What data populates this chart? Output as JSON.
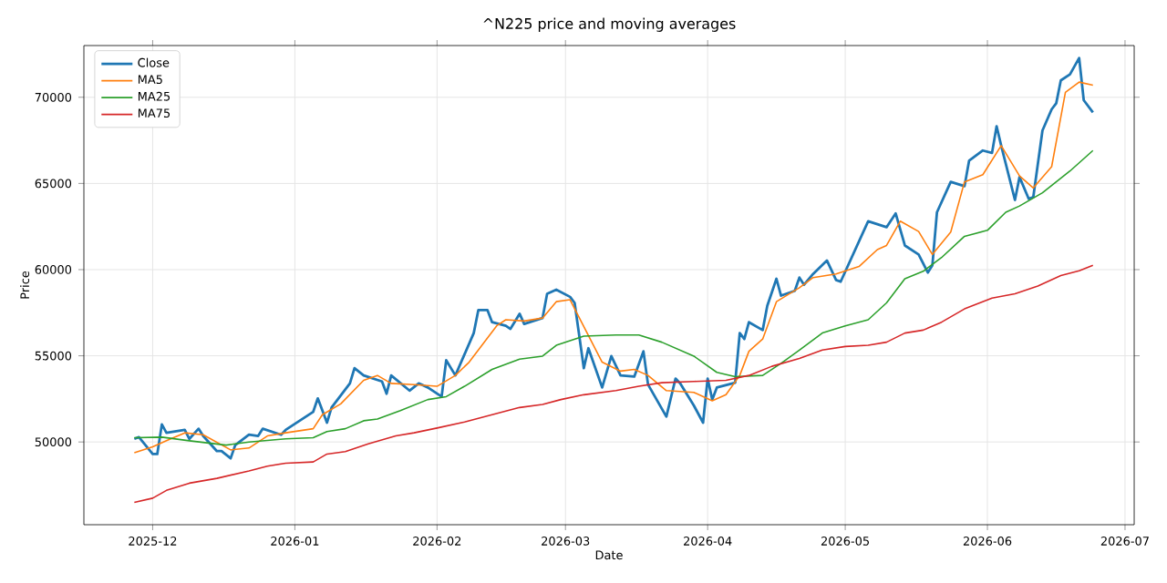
{
  "chart_data": {
    "type": "line",
    "title": "^N225 price and moving averages",
    "xlabel": "Date",
    "ylabel": "Price",
    "xlim": [
      "2025-11-16",
      "2026-07-03"
    ],
    "ylim": [
      45200,
      73000
    ],
    "xticks": [
      "2025-12",
      "2026-01",
      "2026-02",
      "2026-03",
      "2026-04",
      "2026-05",
      "2026-06",
      "2026-07"
    ],
    "yticks": [
      50000,
      55000,
      60000,
      65000,
      70000
    ],
    "grid": true,
    "legend": "top left",
    "marker": "none",
    "line_style": "solid",
    "series": [
      {
        "name": "Close",
        "color": "#1f77b4",
        "x": [
          "2025-11-27",
          "2025-11-28",
          "2025-12-01",
          "2025-12-02",
          "2025-12-03",
          "2025-12-04",
          "2025-12-08",
          "2025-12-09",
          "2025-12-11",
          "2025-12-12",
          "2025-12-15",
          "2025-12-16",
          "2025-12-18",
          "2025-12-19",
          "2025-12-22",
          "2025-12-24",
          "2025-12-25",
          "2025-12-29",
          "2025-12-30",
          "2026-01-05",
          "2026-01-06",
          "2026-01-08",
          "2026-01-09",
          "2026-01-13",
          "2026-01-14",
          "2026-01-16",
          "2026-01-20",
          "2026-01-21",
          "2026-01-22",
          "2026-01-26",
          "2026-01-28",
          "2026-01-30",
          "2026-02-02",
          "2026-02-03",
          "2026-02-05",
          "2026-02-09",
          "2026-02-10",
          "2026-02-12",
          "2026-02-13",
          "2026-02-16",
          "2026-02-17",
          "2026-02-19",
          "2026-02-20",
          "2026-02-24",
          "2026-02-25",
          "2026-02-27",
          "2026-03-02",
          "2026-03-03",
          "2026-03-05",
          "2026-03-06",
          "2026-03-09",
          "2026-03-11",
          "2026-03-13",
          "2026-03-16",
          "2026-03-18",
          "2026-03-19",
          "2026-03-23",
          "2026-03-25",
          "2026-03-26",
          "2026-03-29",
          "2026-03-31",
          "2026-04-01",
          "2026-04-02",
          "2026-04-03",
          "2026-04-07",
          "2026-04-08",
          "2026-04-09",
          "2026-04-10",
          "2026-04-13",
          "2026-04-14",
          "2026-04-16",
          "2026-04-17",
          "2026-04-20",
          "2026-04-21",
          "2026-04-22",
          "2026-04-24",
          "2026-04-27",
          "2026-04-29",
          "2026-04-30",
          "2026-05-06",
          "2026-05-10",
          "2026-05-12",
          "2026-05-14",
          "2026-05-17",
          "2026-05-19",
          "2026-05-20",
          "2026-05-21",
          "2026-05-24",
          "2026-05-27",
          "2026-05-28",
          "2026-05-31",
          "2026-06-02",
          "2026-06-03",
          "2026-06-04",
          "2026-06-07",
          "2026-06-08",
          "2026-06-10",
          "2026-06-11",
          "2026-06-13",
          "2026-06-15",
          "2026-06-16",
          "2026-06-17",
          "2026-06-19",
          "2026-06-21",
          "2026-06-22",
          "2026-06-24"
        ],
        "values": [
          50180,
          50280,
          49300,
          49300,
          51020,
          50530,
          50700,
          50180,
          50770,
          50350,
          49470,
          49470,
          49050,
          49820,
          50420,
          50350,
          50770,
          50420,
          50700,
          51750,
          52530,
          51120,
          52000,
          53400,
          54280,
          53860,
          53510,
          52800,
          53860,
          52980,
          53400,
          53160,
          52630,
          54740,
          53860,
          56320,
          57650,
          57650,
          56950,
          56740,
          56560,
          57440,
          56850,
          57190,
          58600,
          58840,
          58420,
          58070,
          54280,
          55440,
          53160,
          54980,
          53860,
          53790,
          55260,
          53330,
          51470,
          53680,
          53400,
          52110,
          51120,
          53680,
          52460,
          53160,
          53440,
          56320,
          55970,
          56950,
          56490,
          57900,
          59470,
          58490,
          58770,
          59540,
          59120,
          59750,
          60530,
          59400,
          59300,
          62810,
          62460,
          63260,
          61400,
          60880,
          59830,
          60250,
          63330,
          65090,
          64840,
          66320,
          66910,
          66770,
          68320,
          67190,
          64040,
          65370,
          64110,
          64210,
          68070,
          69300,
          69650,
          70980,
          71330,
          72280,
          69830,
          69120
        ]
      },
      {
        "name": "MA5",
        "color": "#ff7f0e",
        "x": [
          "2025-11-27",
          "2025-12-01",
          "2025-12-04",
          "2025-12-08",
          "2025-12-12",
          "2025-12-18",
          "2025-12-22",
          "2025-12-26",
          "2025-12-30",
          "2026-01-05",
          "2026-01-07",
          "2026-01-11",
          "2026-01-16",
          "2026-01-19",
          "2026-01-22",
          "2026-01-27",
          "2026-02-01",
          "2026-02-05",
          "2026-02-08",
          "2026-02-14",
          "2026-02-16",
          "2026-02-20",
          "2026-02-24",
          "2026-02-27",
          "2026-03-02",
          "2026-03-09",
          "2026-03-13",
          "2026-03-16",
          "2026-03-19",
          "2026-03-23",
          "2026-03-29",
          "2026-04-02",
          "2026-04-05",
          "2026-04-08",
          "2026-04-10",
          "2026-04-13",
          "2026-04-16",
          "2026-04-21",
          "2026-04-24",
          "2026-04-29",
          "2026-05-04",
          "2026-05-08",
          "2026-05-10",
          "2026-05-13",
          "2026-05-17",
          "2026-05-20",
          "2026-05-24",
          "2026-05-27",
          "2026-05-31",
          "2026-06-04",
          "2026-06-08",
          "2026-06-11",
          "2026-06-15",
          "2026-06-18",
          "2026-06-21",
          "2026-06-24"
        ],
        "values": [
          49370,
          49720,
          50070,
          50530,
          50420,
          49540,
          49650,
          50350,
          50530,
          50770,
          51580,
          52210,
          53580,
          53860,
          53400,
          53330,
          53230,
          53860,
          54630,
          56740,
          57090,
          57020,
          57190,
          58140,
          58250,
          54630,
          54110,
          54210,
          53860,
          52980,
          52880,
          52390,
          52740,
          53860,
          55260,
          55970,
          58140,
          58950,
          59540,
          59750,
          60180,
          61160,
          61400,
          62810,
          62210,
          60880,
          62180,
          65090,
          65510,
          67190,
          65440,
          64740,
          65970,
          70280,
          70880,
          70700
        ]
      },
      {
        "name": "MA25",
        "color": "#2ca02c",
        "x": [
          "2025-11-27",
          "2025-12-03",
          "2025-12-09",
          "2025-12-17",
          "2025-12-22",
          "2025-12-30",
          "2026-01-05",
          "2026-01-08",
          "2026-01-12",
          "2026-01-16",
          "2026-01-19",
          "2026-01-24",
          "2026-01-30",
          "2026-02-03",
          "2026-02-07",
          "2026-02-13",
          "2026-02-19",
          "2026-02-24",
          "2026-02-27",
          "2026-03-05",
          "2026-03-12",
          "2026-03-17",
          "2026-03-22",
          "2026-03-29",
          "2026-04-03",
          "2026-04-07",
          "2026-04-13",
          "2026-04-17",
          "2026-04-21",
          "2026-04-26",
          "2026-05-01",
          "2026-05-06",
          "2026-05-10",
          "2026-05-14",
          "2026-05-18",
          "2026-05-22",
          "2026-05-27",
          "2026-06-01",
          "2026-06-05",
          "2026-06-08",
          "2026-06-13",
          "2026-06-19",
          "2026-06-24"
        ],
        "values": [
          50250,
          50280,
          50070,
          49820,
          50000,
          50180,
          50250,
          50600,
          50770,
          51230,
          51330,
          51820,
          52460,
          52630,
          53230,
          54210,
          54810,
          54980,
          55610,
          56140,
          56210,
          56210,
          55790,
          54980,
          54040,
          53790,
          53860,
          54560,
          55330,
          56320,
          56740,
          57090,
          58070,
          59470,
          59900,
          60700,
          61930,
          62280,
          63330,
          63690,
          64460,
          65720,
          66910
        ]
      },
      {
        "name": "MA75",
        "color": "#d62728",
        "x": [
          "2025-11-27",
          "2025-12-01",
          "2025-12-04",
          "2025-12-09",
          "2025-12-15",
          "2025-12-22",
          "2025-12-26",
          "2025-12-30",
          "2026-01-05",
          "2026-01-08",
          "2026-01-12",
          "2026-01-17",
          "2026-01-23",
          "2026-01-27",
          "2026-02-01",
          "2026-02-07",
          "2026-02-13",
          "2026-02-19",
          "2026-02-24",
          "2026-02-28",
          "2026-03-05",
          "2026-03-12",
          "2026-03-17",
          "2026-03-22",
          "2026-03-29",
          "2026-04-05",
          "2026-04-10",
          "2026-04-15",
          "2026-04-21",
          "2026-04-26",
          "2026-05-01",
          "2026-05-06",
          "2026-05-10",
          "2026-05-14",
          "2026-05-18",
          "2026-05-22",
          "2026-05-27",
          "2026-06-02",
          "2026-06-07",
          "2026-06-12",
          "2026-06-17",
          "2026-06-21",
          "2026-06-24"
        ],
        "values": [
          46490,
          46740,
          47190,
          47610,
          47890,
          48320,
          48600,
          48770,
          48840,
          49300,
          49440,
          49890,
          50350,
          50530,
          50810,
          51160,
          51580,
          52000,
          52180,
          52460,
          52740,
          52980,
          53230,
          53440,
          53510,
          53580,
          53860,
          54390,
          54840,
          55330,
          55540,
          55610,
          55790,
          56320,
          56490,
          56950,
          57720,
          58350,
          58600,
          59050,
          59650,
          59930,
          60250
        ]
      }
    ]
  }
}
